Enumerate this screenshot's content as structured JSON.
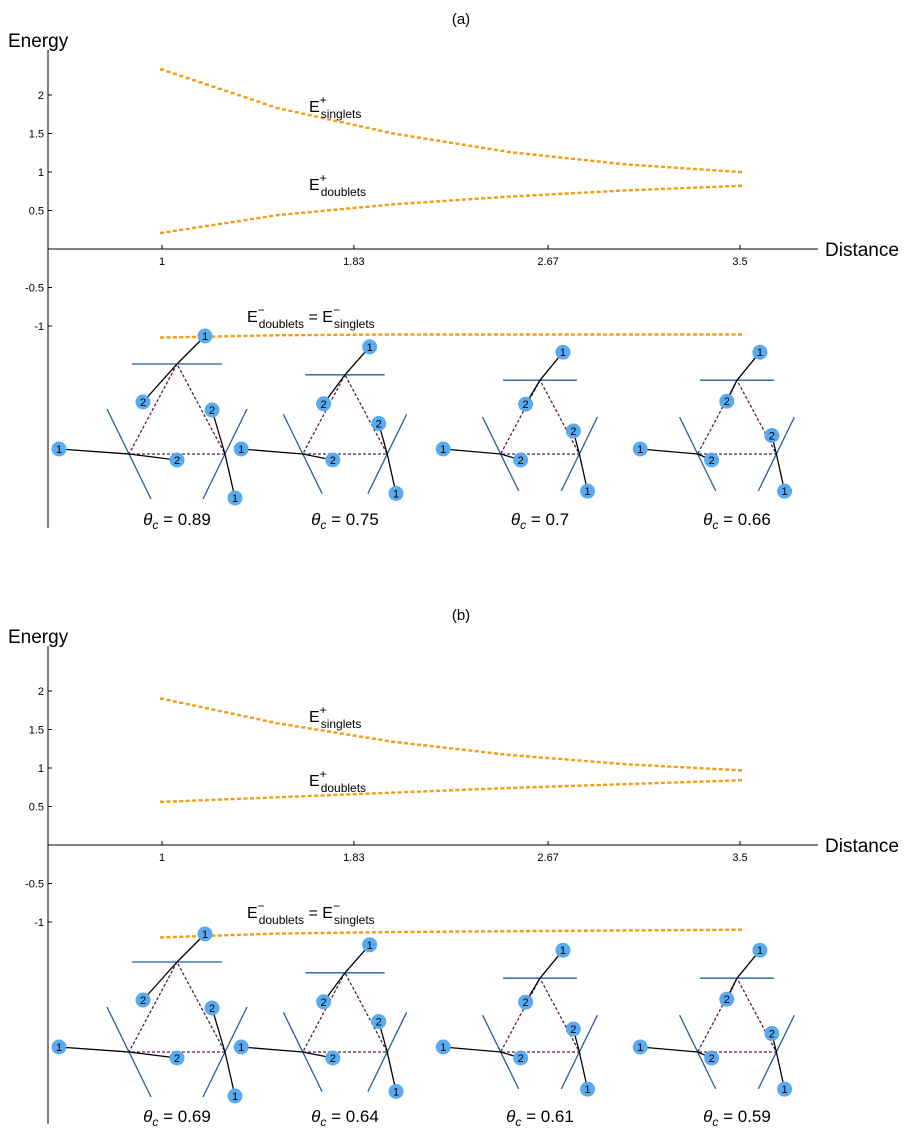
{
  "chart_data": [
    {
      "type": "scatter",
      "panel": "(a)",
      "ylabel": "Energy",
      "xlabel": "Distance",
      "x_ticks": [
        "1",
        "1.83",
        "2.67",
        "3.5"
      ],
      "y_ticks": [
        "-1",
        "-0.5",
        "0.5",
        "1",
        "1.5",
        "2"
      ],
      "xlim": [
        1,
        3.5
      ],
      "series": [
        {
          "name": "E+singlets",
          "label": {
            "main": "E",
            "sup": "+",
            "sub": "singlets"
          },
          "color": "#f39c12",
          "x": [
            1,
            1.5,
            2,
            2.5,
            3,
            3.5
          ],
          "y": [
            2.33,
            1.83,
            1.5,
            1.26,
            1.1,
            1.0
          ]
        },
        {
          "name": "E+doublets",
          "label": {
            "main": "E",
            "sup": "+",
            "sub": "doublets"
          },
          "color": "#f39c12",
          "x": [
            1,
            1.5,
            2,
            2.5,
            3,
            3.5
          ],
          "y": [
            0.21,
            0.44,
            0.58,
            0.68,
            0.76,
            0.82
          ]
        },
        {
          "name": "E-doublets = E-singlets",
          "label": {
            "main": "E",
            "sup": "−",
            "sub": "doublets",
            "eq": "=",
            "main2": "E",
            "sup2": "−",
            "sub2": "singlets"
          },
          "color": "#f39c12",
          "x": [
            1,
            1.5,
            2,
            2.5,
            3,
            3.5
          ],
          "y": [
            -1.15,
            -1.12,
            -1.11,
            -1.11,
            -1.11,
            -1.11
          ]
        }
      ],
      "insets": [
        {
          "theta_label": "θ",
          "theta_sub": "c",
          "eq": "=",
          "theta_value": "0.89"
        },
        {
          "theta_label": "θ",
          "theta_sub": "c",
          "eq": "=",
          "theta_value": "0.75"
        },
        {
          "theta_label": "θ",
          "theta_sub": "c",
          "eq": "=",
          "theta_value": "0.7"
        },
        {
          "theta_label": "θ",
          "theta_sub": "c",
          "eq": "=",
          "theta_value": "0.66"
        }
      ]
    },
    {
      "type": "scatter",
      "panel": "(b)",
      "ylabel": "Energy",
      "xlabel": "Distance",
      "x_ticks": [
        "1",
        "1.83",
        "2.67",
        "3.5"
      ],
      "y_ticks": [
        "-1",
        "-0.5",
        "0.5",
        "1",
        "1.5",
        "2"
      ],
      "xlim": [
        1,
        3.5
      ],
      "series": [
        {
          "name": "E+singlets",
          "label": {
            "main": "E",
            "sup": "+",
            "sub": "singlets"
          },
          "color": "#f39c12",
          "x": [
            1,
            1.5,
            2,
            2.5,
            3,
            3.5
          ],
          "y": [
            1.9,
            1.58,
            1.34,
            1.17,
            1.05,
            0.97
          ]
        },
        {
          "name": "E+doublets",
          "label": {
            "main": "E",
            "sup": "+",
            "sub": "doublets"
          },
          "color": "#f39c12",
          "x": [
            1,
            1.5,
            2,
            2.5,
            3,
            3.5
          ],
          "y": [
            0.56,
            0.62,
            0.68,
            0.74,
            0.79,
            0.84
          ]
        },
        {
          "name": "E-doublets = E-singlets",
          "label": {
            "main": "E",
            "sup": "−",
            "sub": "doublets",
            "eq": "=",
            "main2": "E",
            "sup2": "−",
            "sub2": "singlets"
          },
          "color": "#f39c12",
          "x": [
            1,
            1.5,
            2,
            2.5,
            3,
            3.5
          ],
          "y": [
            -1.2,
            -1.15,
            -1.13,
            -1.12,
            -1.11,
            -1.1
          ]
        }
      ],
      "insets": [
        {
          "theta_label": "θ",
          "theta_sub": "c",
          "eq": "=",
          "theta_value": "0.69"
        },
        {
          "theta_label": "θ",
          "theta_sub": "c",
          "eq": "=",
          "theta_value": "0.64"
        },
        {
          "theta_label": "θ",
          "theta_sub": "c",
          "eq": "=",
          "theta_value": "0.61"
        },
        {
          "theta_label": "θ",
          "theta_sub": "c",
          "eq": "=",
          "theta_value": "0.59"
        }
      ]
    }
  ]
}
